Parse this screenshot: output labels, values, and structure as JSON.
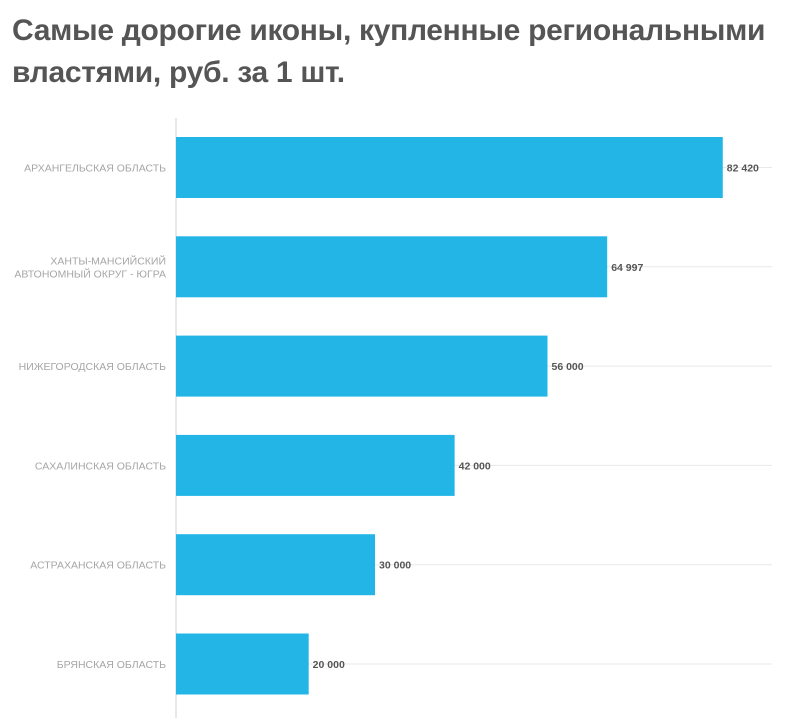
{
  "title": "Самые дорогие иконы, купленные региональными властями, руб. за 1 шт.",
  "colors": {
    "bar": "#22b5e6",
    "grid": "#e8e8e8",
    "axis": "#d0d0d0"
  },
  "chart_data": {
    "type": "bar",
    "orientation": "horizontal",
    "title": "Самые дорогие иконы, купленные региональными властями, руб. за 1 шт.",
    "categories": [
      [
        "АРХАНГЕЛЬСКАЯ ОБЛАСТЬ"
      ],
      [
        "ХАНТЫ-МАНСИЙСКИЙ",
        "АВТОНОМНЫЙ ОКРУГ - ЮГРА"
      ],
      [
        "НИЖЕГОРОДСКАЯ ОБЛАСТЬ"
      ],
      [
        "САХАЛИНСКАЯ ОБЛАСТЬ"
      ],
      [
        "АСТРАХАНСКАЯ ОБЛАСТЬ"
      ],
      [
        "БРЯНСКАЯ ОБЛАСТЬ"
      ]
    ],
    "values": [
      82420,
      64997,
      56000,
      42000,
      30000,
      20000
    ],
    "value_labels": [
      "82 420",
      "64 997",
      "56 000",
      "42 000",
      "30 000",
      "20 000"
    ],
    "xlim": [
      0,
      90000
    ],
    "grid": true,
    "legend": "none"
  }
}
